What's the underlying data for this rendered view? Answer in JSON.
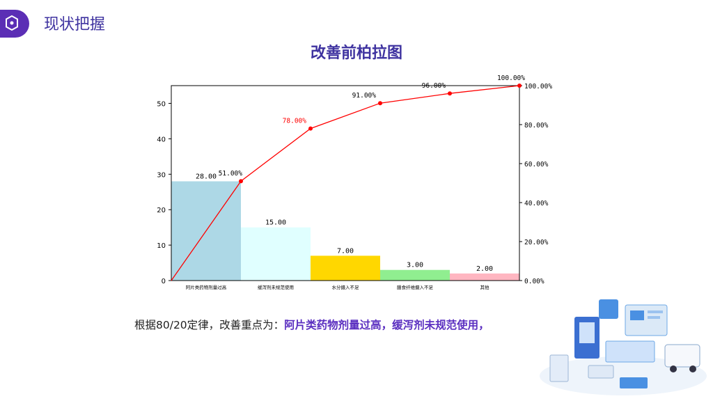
{
  "header": {
    "title": "现状把握"
  },
  "chart_title": "改善前柏拉图",
  "chart_data": {
    "type": "bar",
    "categories": [
      "阿片类药物剂量过高",
      "缓泻剂未规范使用",
      "水分摄入不足",
      "膳食纤维摄入不足",
      "其他"
    ],
    "values": [
      28,
      15,
      7,
      3,
      2
    ],
    "value_labels": [
      "28.00",
      "15.00",
      "7.00",
      "3.00",
      "2.00"
    ],
    "bar_colors": [
      "#add8e6",
      "#e0ffff",
      "#ffd700",
      "#90ee90",
      "#ffb6c1"
    ],
    "cumulative_percent": [
      0,
      51,
      78,
      91,
      96,
      100
    ],
    "cumulative_labels": [
      "51.00%",
      "78.00%",
      "91.00%",
      "96.00%",
      "100.00%"
    ],
    "cumulative_label_colors": [
      "#000000",
      "#ff0000",
      "#000000",
      "#000000",
      "#000000"
    ],
    "line_color": "#ff0000",
    "ylim": [
      0,
      55
    ],
    "yticks": [
      0,
      10,
      20,
      30,
      40,
      50
    ],
    "y2lim": [
      0,
      100
    ],
    "y2ticks": [
      "0.00%",
      "20.00%",
      "40.00%",
      "60.00%",
      "80.00%",
      "100.00%"
    ]
  },
  "conclusion": {
    "prefix": "根据80/20定律，改善重点为：",
    "highlight": "阿片类药物剂量过高，缓泻剂未规范使用，"
  },
  "colors": {
    "accent": "#5b2eb5",
    "title": "#3f33a0"
  }
}
